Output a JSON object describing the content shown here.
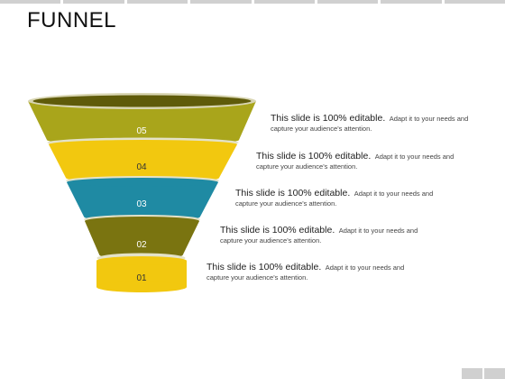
{
  "title": "FUNNEL",
  "colors": {
    "olive": "#a9a51b",
    "yellow": "#f2c80f",
    "teal": "#1f8aa3",
    "dark_olive": "#7a7410",
    "rim": "#d8d5b2"
  },
  "levels": [
    {
      "number": "05",
      "lead": "This slide is 100% editable.",
      "rest": "Adapt it to your needs and",
      "line2": "capture your audience's attention."
    },
    {
      "number": "04",
      "lead": "This slide is 100% editable.",
      "rest": "Adapt it to your needs and",
      "line2": "capture your audience's attention."
    },
    {
      "number": "03",
      "lead": "This slide is 100% editable.",
      "rest": "Adapt it to your needs and",
      "line2": "capture your audience's attention."
    },
    {
      "number": "02",
      "lead": "This slide is 100% editable.",
      "rest": "Adapt it to your needs and",
      "line2": "capture your audience's attention."
    },
    {
      "number": "01",
      "lead": "This slide is 100% editable.",
      "rest": "Adapt it to your needs and",
      "line2": "capture your audience's attention."
    }
  ]
}
